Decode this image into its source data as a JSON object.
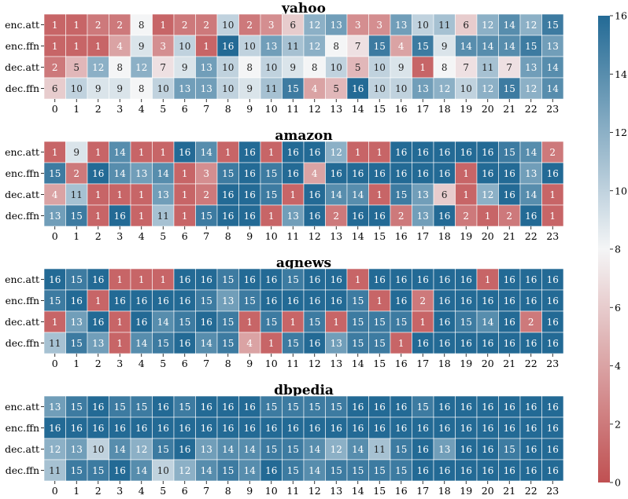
{
  "chart_data": {
    "type": "heatmap",
    "rows": [
      "enc.att",
      "enc.ffn",
      "dec.att",
      "dec.ffn"
    ],
    "columns": [
      "0",
      "1",
      "2",
      "3",
      "4",
      "5",
      "6",
      "7",
      "8",
      "9",
      "10",
      "11",
      "12",
      "13",
      "14",
      "15",
      "16",
      "17",
      "18",
      "19",
      "20",
      "21",
      "22",
      "23"
    ],
    "colorbar": {
      "min": 0,
      "max": 16,
      "ticks": [
        "0",
        "2",
        "4",
        "6",
        "8",
        "10",
        "12",
        "14",
        "16"
      ]
    },
    "colors": {
      "low": "#c05052",
      "mid": "#f4f5f6",
      "high": "#236a95"
    },
    "panels": [
      {
        "title": "yahoo",
        "values": [
          [
            1,
            1,
            2,
            2,
            8,
            1,
            2,
            2,
            10,
            2,
            3,
            6,
            12,
            13,
            3,
            3,
            13,
            10,
            11,
            6,
            12,
            14,
            12,
            15
          ],
          [
            1,
            1,
            1,
            4,
            9,
            3,
            10,
            1,
            16,
            10,
            13,
            11,
            12,
            8,
            7,
            15,
            4,
            15,
            9,
            14,
            14,
            14,
            15,
            13
          ],
          [
            2,
            5,
            12,
            8,
            12,
            7,
            9,
            13,
            10,
            8,
            10,
            9,
            8,
            10,
            5,
            10,
            9,
            1,
            8,
            7,
            11,
            7,
            13,
            14
          ],
          [
            6,
            10,
            9,
            9,
            8,
            10,
            13,
            13,
            10,
            9,
            11,
            15,
            4,
            5,
            16,
            10,
            10,
            13,
            12,
            10,
            12,
            15,
            12,
            14
          ]
        ]
      },
      {
        "title": "amazon",
        "values": [
          [
            1,
            9,
            1,
            14,
            1,
            1,
            16,
            14,
            1,
            16,
            1,
            16,
            16,
            12,
            1,
            1,
            16,
            16,
            16,
            16,
            16,
            15,
            14,
            2
          ],
          [
            15,
            2,
            16,
            14,
            13,
            14,
            1,
            3,
            15,
            16,
            15,
            16,
            4,
            16,
            16,
            16,
            16,
            16,
            16,
            1,
            16,
            16,
            13,
            16
          ],
          [
            4,
            11,
            1,
            1,
            1,
            13,
            1,
            2,
            16,
            16,
            15,
            1,
            16,
            14,
            14,
            1,
            15,
            13,
            6,
            1,
            12,
            16,
            14,
            1
          ],
          [
            13,
            15,
            1,
            16,
            1,
            11,
            1,
            15,
            16,
            16,
            1,
            13,
            16,
            2,
            16,
            16,
            2,
            13,
            16,
            2,
            1,
            2,
            16,
            1
          ]
        ]
      },
      {
        "title": "agnews",
        "values": [
          [
            16,
            15,
            16,
            1,
            1,
            1,
            16,
            16,
            15,
            16,
            16,
            15,
            16,
            16,
            1,
            16,
            16,
            16,
            16,
            16,
            1,
            16,
            16,
            16
          ],
          [
            15,
            16,
            1,
            16,
            16,
            16,
            16,
            15,
            13,
            15,
            16,
            16,
            16,
            16,
            15,
            1,
            16,
            2,
            16,
            16,
            16,
            16,
            16,
            16
          ],
          [
            1,
            13,
            16,
            1,
            16,
            14,
            15,
            16,
            15,
            1,
            15,
            1,
            15,
            1,
            15,
            15,
            15,
            1,
            16,
            15,
            14,
            16,
            2,
            16
          ],
          [
            11,
            15,
            13,
            1,
            14,
            15,
            16,
            14,
            15,
            4,
            1,
            15,
            16,
            13,
            15,
            15,
            1,
            16,
            16,
            16,
            16,
            16,
            16,
            16
          ]
        ]
      },
      {
        "title": "dbpedia",
        "values": [
          [
            13,
            15,
            16,
            15,
            15,
            16,
            15,
            16,
            16,
            16,
            15,
            15,
            15,
            15,
            16,
            16,
            16,
            15,
            16,
            16,
            16,
            16,
            16,
            16
          ],
          [
            16,
            16,
            16,
            16,
            16,
            16,
            16,
            16,
            16,
            16,
            16,
            16,
            16,
            16,
            16,
            16,
            16,
            16,
            16,
            16,
            16,
            16,
            16,
            16
          ],
          [
            12,
            13,
            10,
            14,
            12,
            15,
            16,
            13,
            14,
            14,
            15,
            15,
            14,
            12,
            14,
            11,
            15,
            16,
            13,
            16,
            16,
            15,
            16,
            16
          ],
          [
            11,
            15,
            15,
            16,
            14,
            10,
            12,
            14,
            15,
            14,
            16,
            15,
            14,
            15,
            15,
            15,
            15,
            16,
            16,
            16,
            16,
            16,
            16,
            16
          ]
        ]
      }
    ]
  }
}
